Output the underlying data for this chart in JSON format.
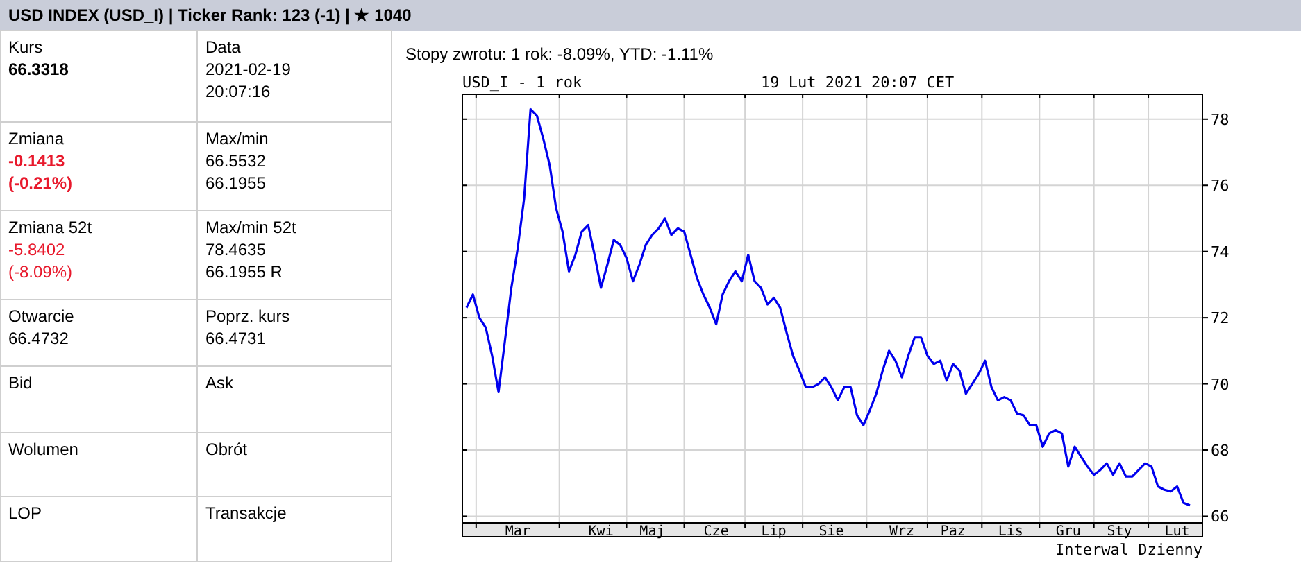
{
  "chart_data": [
    {
      "type": "other",
      "title": "USD INDEX (USD_I) | Ticker Rank: 123 (-1) | ★ 1040",
      "annotations": [
        "Kurs\n66.3318",
        "Data\n2021-02-19\n20:07:16",
        "Zmiana\n-0.1413\n(-0.21%)",
        "Max/min\n66.5532\n66.1955",
        "Zmiana 52t\n-5.8402\n(-8.09%)",
        "Max/min 52t\n78.4635\n66.1955 R",
        "Otwarcie\n66.4732",
        "Poprz. kurs\n66.4731",
        "Bid",
        "Ask",
        "Wolumen",
        "Obrót",
        "LOP",
        "Transakcje"
      ]
    },
    {
      "type": "line",
      "title": "USD_I - 1 rok",
      "subtitle": "19 Lut 2021 20:07 CET",
      "annotations": [
        "Stopy zwrotu: 1 rok: -8.09%, YTD: -1.11%",
        "Interwal Dzienny"
      ],
      "categories": [
        null,
        null,
        null,
        null,
        null,
        null,
        null,
        null,
        "Mar",
        null,
        null,
        null,
        null,
        null,
        null,
        null,
        null,
        null,
        null,
        null,
        null,
        "Kwi",
        null,
        null,
        null,
        null,
        null,
        null,
        null,
        "Maj",
        null,
        null,
        null,
        null,
        null,
        null,
        null,
        null,
        null,
        "Cze",
        null,
        null,
        null,
        null,
        null,
        null,
        null,
        null,
        "Lip",
        null,
        null,
        null,
        null,
        null,
        null,
        null,
        null,
        "Sie",
        null,
        null,
        null,
        null,
        null,
        null,
        null,
        null,
        null,
        null,
        "Wrz",
        null,
        null,
        null,
        null,
        null,
        null,
        null,
        "Paz",
        null,
        null,
        null,
        null,
        null,
        null,
        null,
        null,
        "Lis",
        null,
        null,
        null,
        null,
        null,
        null,
        null,
        null,
        "Gru",
        null,
        null,
        null,
        null,
        null,
        null,
        null,
        "Sty",
        null,
        null,
        null,
        null,
        null,
        null,
        null,
        null,
        "Lut",
        null,
        null
      ],
      "series": [
        {
          "color": "#0000ee",
          "values": [
            72.3,
            72.7,
            72.0,
            71.7,
            70.85,
            69.75,
            71.3,
            72.9,
            74.1,
            75.6,
            78.3,
            78.1,
            77.4,
            76.6,
            75.3,
            74.6,
            73.4,
            73.9,
            74.6,
            74.8,
            73.9,
            72.9,
            73.6,
            74.35,
            74.2,
            73.8,
            73.1,
            73.6,
            74.2,
            74.5,
            74.7,
            75.0,
            74.5,
            74.7,
            74.6,
            73.9,
            73.2,
            72.7,
            72.3,
            71.8,
            72.7,
            73.1,
            73.4,
            73.1,
            73.9,
            73.1,
            72.9,
            72.4,
            72.6,
            72.3,
            71.55,
            70.85,
            70.4,
            69.9,
            69.9,
            70.0,
            70.2,
            69.9,
            69.5,
            69.9,
            69.9,
            69.05,
            68.75,
            69.2,
            69.7,
            70.4,
            71.0,
            70.7,
            70.2,
            70.85,
            71.4,
            71.4,
            70.85,
            70.6,
            70.7,
            70.1,
            70.6,
            70.4,
            69.7,
            70.0,
            70.3,
            70.7,
            69.9,
            69.5,
            69.6,
            69.5,
            69.1,
            69.05,
            68.75,
            68.75,
            68.1,
            68.5,
            68.6,
            68.5,
            67.5,
            68.1,
            67.8,
            67.5,
            67.25,
            67.4,
            67.6,
            67.25,
            67.6,
            67.2,
            67.2,
            67.4,
            67.6,
            67.5,
            66.9,
            66.8,
            66.75,
            66.9,
            66.4,
            66.33
          ]
        }
      ],
      "ylim": [
        65.8,
        78.75
      ],
      "yticks": [
        66,
        68,
        70,
        72,
        74,
        76,
        78
      ],
      "grid": true
    }
  ]
}
